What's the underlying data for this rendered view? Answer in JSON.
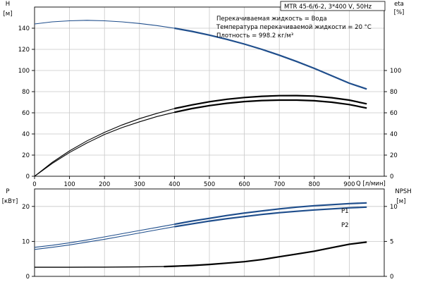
{
  "chart_data": [
    {
      "type": "line",
      "panel": "head-efficiency",
      "title": "MTR 45-6/6-2, 3*400 V, 50Hz",
      "annotations": [
        "Перекачиваемая жидкость = Вода",
        "Температура перекачиваемой жидкости = 20 °C",
        "Плотность = 998.2 кг/м³"
      ],
      "xlabel": "Q [л/мин]",
      "ylabel_left": [
        "H",
        "[м]"
      ],
      "ylabel_right": [
        "eta",
        "[%]"
      ],
      "xlim": [
        0,
        1000
      ],
      "ylim_left": [
        0,
        160
      ],
      "ylim_right": [
        0,
        160
      ],
      "x_ticks": [
        "0",
        "100",
        "200",
        "300",
        "400",
        "500",
        "600",
        "700",
        "800",
        "900"
      ],
      "y_ticks_left": [
        "0",
        "20",
        "40",
        "60",
        "80",
        "100",
        "120",
        "140"
      ],
      "y_ticks_right": [
        "0",
        "20",
        "40",
        "60",
        "80",
        "100"
      ],
      "grid": true,
      "series": [
        {
          "id": "H",
          "axis": "left",
          "color": "#1f4e8c",
          "x": [
            0,
            50,
            100,
            150,
            200,
            250,
            300,
            350,
            400,
            450,
            500,
            550,
            600,
            650,
            700,
            750,
            800,
            850,
            900,
            950
          ],
          "y": [
            144,
            146,
            147,
            147.5,
            147,
            146,
            144.5,
            142.5,
            140,
            137,
            133.5,
            129.5,
            125,
            120,
            114.5,
            108.5,
            102,
            95,
            88,
            82.5
          ]
        },
        {
          "id": "eta-upper",
          "axis": "right",
          "color": "#000000",
          "x": [
            0,
            50,
            100,
            150,
            200,
            250,
            300,
            350,
            400,
            450,
            500,
            550,
            600,
            650,
            700,
            750,
            800,
            850,
            900,
            950
          ],
          "y": [
            0,
            13,
            24,
            33.5,
            41.5,
            48.5,
            54.5,
            59.5,
            64,
            67.5,
            70.5,
            72.8,
            74.5,
            75.6,
            76.2,
            76.3,
            75.8,
            74.3,
            72,
            68.5
          ]
        },
        {
          "id": "eta-lower",
          "axis": "right",
          "color": "#000000",
          "x": [
            0,
            50,
            100,
            150,
            200,
            250,
            300,
            350,
            400,
            450,
            500,
            550,
            600,
            650,
            700,
            750,
            800,
            850,
            900,
            950
          ],
          "y": [
            0,
            12,
            22.5,
            31.5,
            39.5,
            46,
            51.5,
            56.5,
            60.5,
            64,
            66.8,
            69,
            70.6,
            71.6,
            72,
            72,
            71.4,
            70,
            67.8,
            64.5
          ]
        }
      ]
    },
    {
      "type": "line",
      "panel": "power-npsh",
      "xlim": [
        0,
        1000
      ],
      "ylabel_left": [
        "P",
        "[кВт]"
      ],
      "ylabel_right": [
        "NPSH",
        "[м]"
      ],
      "ylim_left": [
        0,
        25
      ],
      "ylim_right": [
        0,
        12.5
      ],
      "y_ticks_left": [
        "0",
        "10",
        "20"
      ],
      "y_ticks_right": [
        "0",
        "5",
        "10"
      ],
      "grid": true,
      "series": [
        {
          "id": "P1",
          "name": "P1",
          "axis": "left",
          "color": "#1f4e8c",
          "x": [
            0,
            50,
            100,
            150,
            200,
            250,
            300,
            350,
            400,
            450,
            500,
            550,
            600,
            650,
            700,
            750,
            800,
            850,
            900,
            950
          ],
          "y": [
            8.3,
            8.9,
            9.6,
            10.4,
            11.3,
            12.2,
            13.1,
            14,
            14.9,
            15.8,
            16.6,
            17.4,
            18.1,
            18.7,
            19.3,
            19.8,
            20.2,
            20.5,
            20.8,
            21
          ]
        },
        {
          "id": "P2",
          "name": "P2",
          "axis": "left",
          "color": "#1f4e8c",
          "x": [
            0,
            50,
            100,
            150,
            200,
            250,
            300,
            350,
            400,
            450,
            500,
            550,
            600,
            650,
            700,
            750,
            800,
            850,
            900,
            950
          ],
          "y": [
            7.7,
            8.3,
            9,
            9.8,
            10.6,
            11.5,
            12.4,
            13.3,
            14.2,
            15,
            15.8,
            16.5,
            17.1,
            17.7,
            18.2,
            18.6,
            19,
            19.3,
            19.6,
            19.8
          ]
        },
        {
          "id": "NPSH",
          "axis": "right",
          "color": "#000000",
          "x": [
            0,
            100,
            200,
            300,
            370,
            400,
            450,
            500,
            550,
            600,
            650,
            700,
            750,
            800,
            850,
            900,
            950
          ],
          "y": [
            1.3,
            1.3,
            1.32,
            1.35,
            1.4,
            1.45,
            1.55,
            1.7,
            1.9,
            2.1,
            2.4,
            2.8,
            3.2,
            3.6,
            4.1,
            4.6,
            4.9
          ]
        }
      ]
    }
  ]
}
